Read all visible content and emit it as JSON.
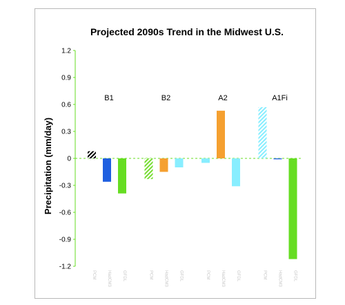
{
  "chart_data": {
    "type": "bar",
    "title": "Projected 2090s Trend in the Midwest U.S.",
    "ylabel": "Precipitation (mm/day)",
    "xlabel": "",
    "ylim": [
      -1.2,
      1.2
    ],
    "yticks": [
      1.2,
      0.9,
      0.6,
      0.3,
      0,
      -0.3,
      -0.6,
      -0.9,
      -1.2
    ],
    "grid": false,
    "groups": [
      {
        "name": "B1",
        "bars": [
          {
            "category": "PCM",
            "value": 0.08,
            "color": "#000000",
            "hatched": true
          },
          {
            "category": "HadCM3",
            "value": -0.26,
            "color": "#1f5fe0",
            "hatched": false
          },
          {
            "category": "GFDL",
            "value": -0.39,
            "color": "#66dd22",
            "hatched": false
          }
        ]
      },
      {
        "name": "B2",
        "bars": [
          {
            "category": "PCM",
            "value": -0.23,
            "color": "#77dd33",
            "hatched": true
          },
          {
            "category": "HadCM3",
            "value": -0.15,
            "color": "#f5a030",
            "hatched": false
          },
          {
            "category": "GFDL",
            "value": -0.1,
            "color": "#88eeff",
            "hatched": false
          }
        ]
      },
      {
        "name": "A2",
        "bars": [
          {
            "category": "PCM",
            "value": -0.05,
            "color": "#88eeff",
            "hatched": false
          },
          {
            "category": "HadCM3",
            "value": 0.53,
            "color": "#f5a030",
            "hatched": false
          },
          {
            "category": "GFDL",
            "value": -0.31,
            "color": "#88eeff",
            "hatched": false
          }
        ]
      },
      {
        "name": "A1Fi",
        "bars": [
          {
            "category": "PCM",
            "value": 0.57,
            "color": "#88eeff",
            "hatched": true
          },
          {
            "category": "HadCM3",
            "value": -0.01,
            "color": "#1f5fe0",
            "hatched": false
          },
          {
            "category": "GFDL",
            "value": -1.12,
            "color": "#66dd22",
            "hatched": false
          }
        ]
      }
    ]
  }
}
